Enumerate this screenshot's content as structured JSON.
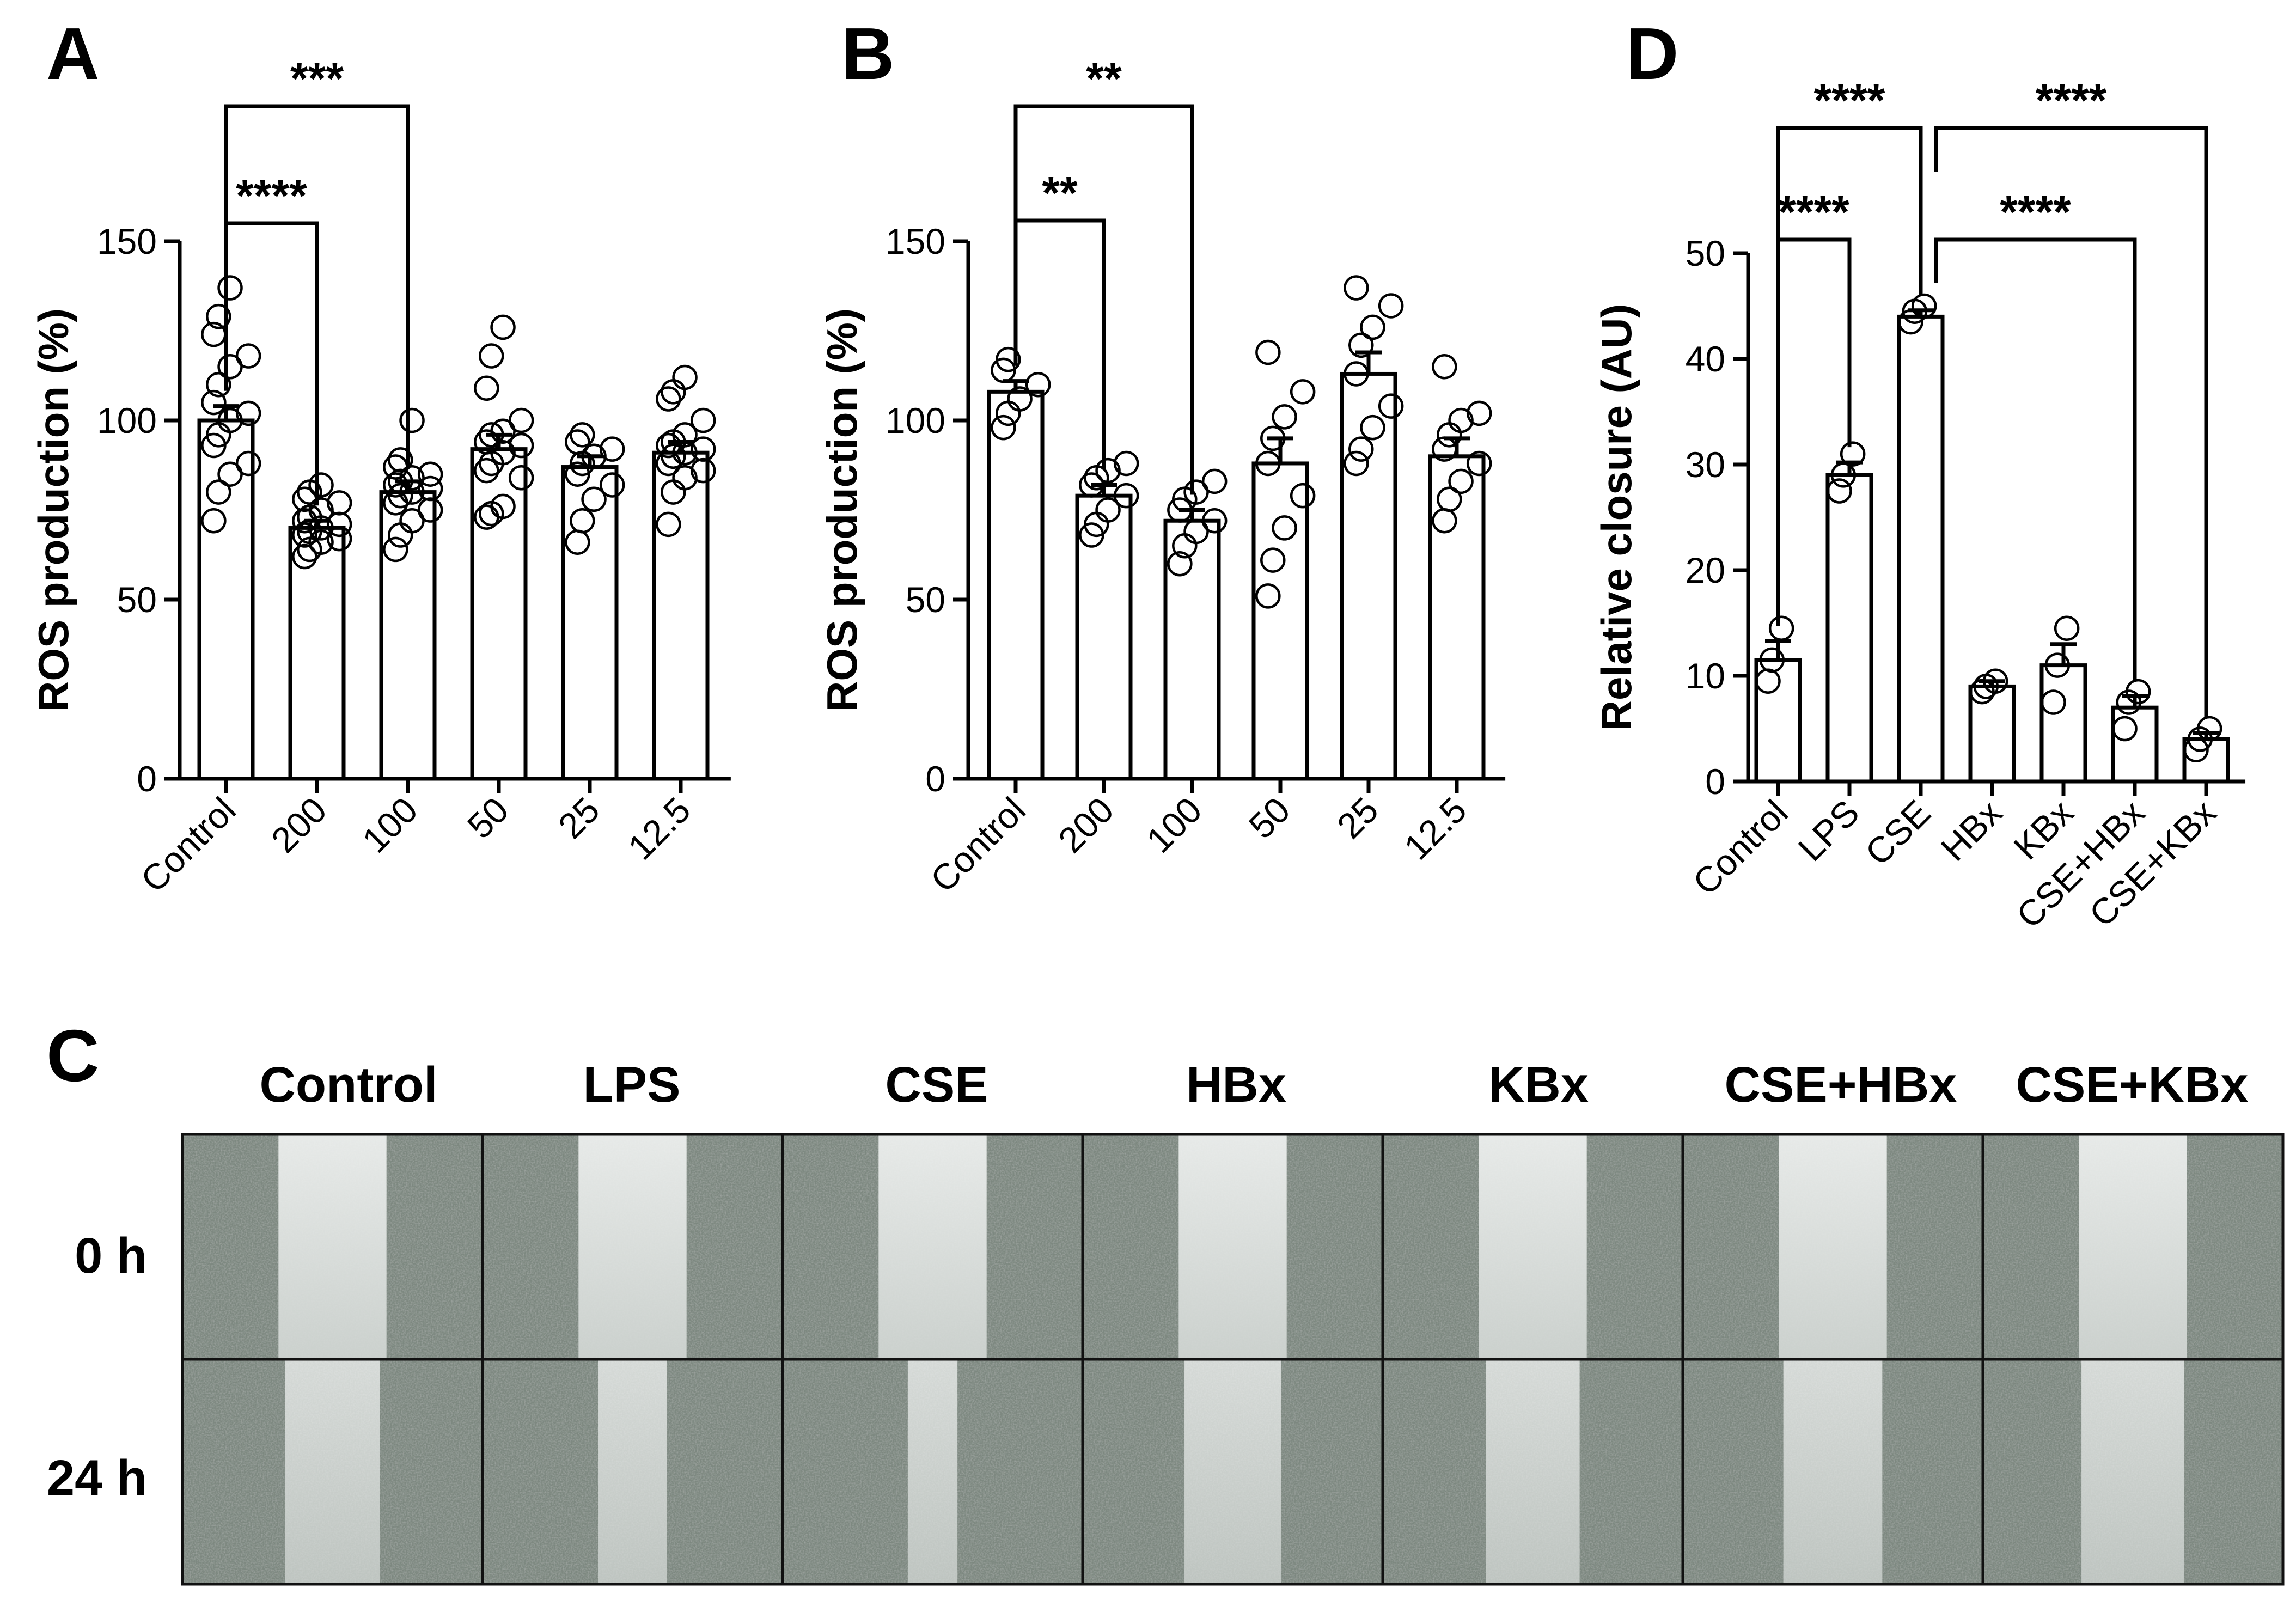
{
  "chart_data": [
    {
      "panel": "A",
      "type": "bar",
      "ylabel": "ROS production (%)",
      "ylim": [
        0,
        150
      ],
      "yticks": [
        "0",
        "50",
        "100",
        "150"
      ],
      "categories": [
        "Control",
        "200",
        "100",
        "50",
        "25",
        "12.5"
      ],
      "values": [
        100,
        70,
        80,
        92,
        87,
        91
      ],
      "sem": [
        4,
        2,
        3,
        4,
        3,
        3
      ],
      "points": [
        [
          72,
          80,
          85,
          88,
          93,
          96,
          100,
          102,
          105,
          110,
          115,
          118,
          124,
          129,
          137
        ],
        [
          62,
          64,
          66,
          67,
          68,
          69,
          70,
          71,
          72,
          73,
          75,
          77,
          78,
          80,
          82
        ],
        [
          64,
          68,
          72,
          75,
          77,
          79,
          80,
          81,
          82,
          83,
          84,
          85,
          87,
          89,
          100
        ],
        [
          73,
          74,
          76,
          84,
          86,
          88,
          91,
          93,
          94,
          96,
          97,
          100,
          109,
          118,
          126
        ],
        [
          66,
          72,
          78,
          82,
          85,
          88,
          90,
          92,
          94,
          96
        ],
        [
          71,
          80,
          84,
          86,
          88,
          90,
          91,
          92,
          93,
          94,
          96,
          100,
          106,
          108,
          112
        ]
      ],
      "significance": [
        {
          "from": 0,
          "to": 1,
          "label": "****"
        },
        {
          "from": 0,
          "to": 2,
          "label": "***"
        }
      ]
    },
    {
      "panel": "B",
      "type": "bar",
      "ylabel": "ROS production (%)",
      "ylim": [
        0,
        150
      ],
      "yticks": [
        "0",
        "50",
        "100",
        "150"
      ],
      "categories": [
        "Control",
        "200",
        "100",
        "50",
        "25",
        "12.5"
      ],
      "values": [
        108,
        79,
        72,
        88,
        113,
        90
      ],
      "sem": [
        3,
        3,
        3,
        7,
        6,
        5
      ],
      "points": [
        [
          98,
          102,
          106,
          110,
          114,
          117
        ],
        [
          68,
          71,
          75,
          79,
          82,
          84,
          86,
          88
        ],
        [
          60,
          65,
          69,
          72,
          75,
          78,
          80,
          83
        ],
        [
          51,
          61,
          70,
          79,
          88,
          95,
          101,
          108,
          119
        ],
        [
          88,
          92,
          98,
          104,
          113,
          121,
          126,
          132,
          137
        ],
        [
          72,
          78,
          83,
          88,
          92,
          96,
          100,
          102,
          115
        ]
      ],
      "significance": [
        {
          "from": 0,
          "to": 1,
          "label": "**"
        },
        {
          "from": 0,
          "to": 2,
          "label": "**"
        }
      ]
    },
    {
      "panel": "D",
      "type": "bar",
      "ylabel": "Relative closure (AU)",
      "ylim": [
        0,
        50
      ],
      "yticks": [
        "0",
        "10",
        "20",
        "30",
        "40",
        "50"
      ],
      "categories": [
        "Control",
        "LPS",
        "CSE",
        "HBx",
        "KBx",
        "CSE+HBx",
        "CSE+KBx"
      ],
      "values": [
        11.5,
        29,
        44,
        9,
        11,
        7,
        4
      ],
      "sem": [
        1.8,
        1.2,
        0.6,
        0.5,
        2,
        1.1,
        0.6
      ],
      "points": [
        [
          9.5,
          11.5,
          14.5
        ],
        [
          27.5,
          29,
          31
        ],
        [
          43.5,
          44.5,
          45
        ],
        [
          8.5,
          9,
          9.5
        ],
        [
          7.5,
          11,
          14.5
        ],
        [
          5,
          7.5,
          8.5
        ],
        [
          3,
          4,
          5
        ]
      ],
      "significance": [
        {
          "from": 0,
          "to": 1,
          "label": "****"
        },
        {
          "from": 0,
          "to": 2,
          "label": "****"
        },
        {
          "from": 2,
          "to": 5,
          "label": "****"
        },
        {
          "from": 2,
          "to": 6,
          "label": "****"
        }
      ]
    }
  ],
  "panels": {
    "a": {
      "letter": "A"
    },
    "b": {
      "letter": "B"
    },
    "c": {
      "letter": "C"
    },
    "d": {
      "letter": "D"
    }
  },
  "micrographs": {
    "columns": [
      "Control",
      "LPS",
      "CSE",
      "HBx",
      "KBx",
      "CSE+HBx",
      "CSE+KBx"
    ],
    "rows": [
      "0 h",
      "24 h"
    ],
    "wound_closure_fraction": [
      [
        0.0,
        0.0,
        0.0,
        0.0,
        0.0,
        0.0,
        0.0
      ],
      [
        0.1,
        0.3,
        0.45,
        0.09,
        0.11,
        0.07,
        0.04
      ]
    ],
    "cell_color": "#7d8880",
    "wound_color": "#dfe3e0"
  }
}
